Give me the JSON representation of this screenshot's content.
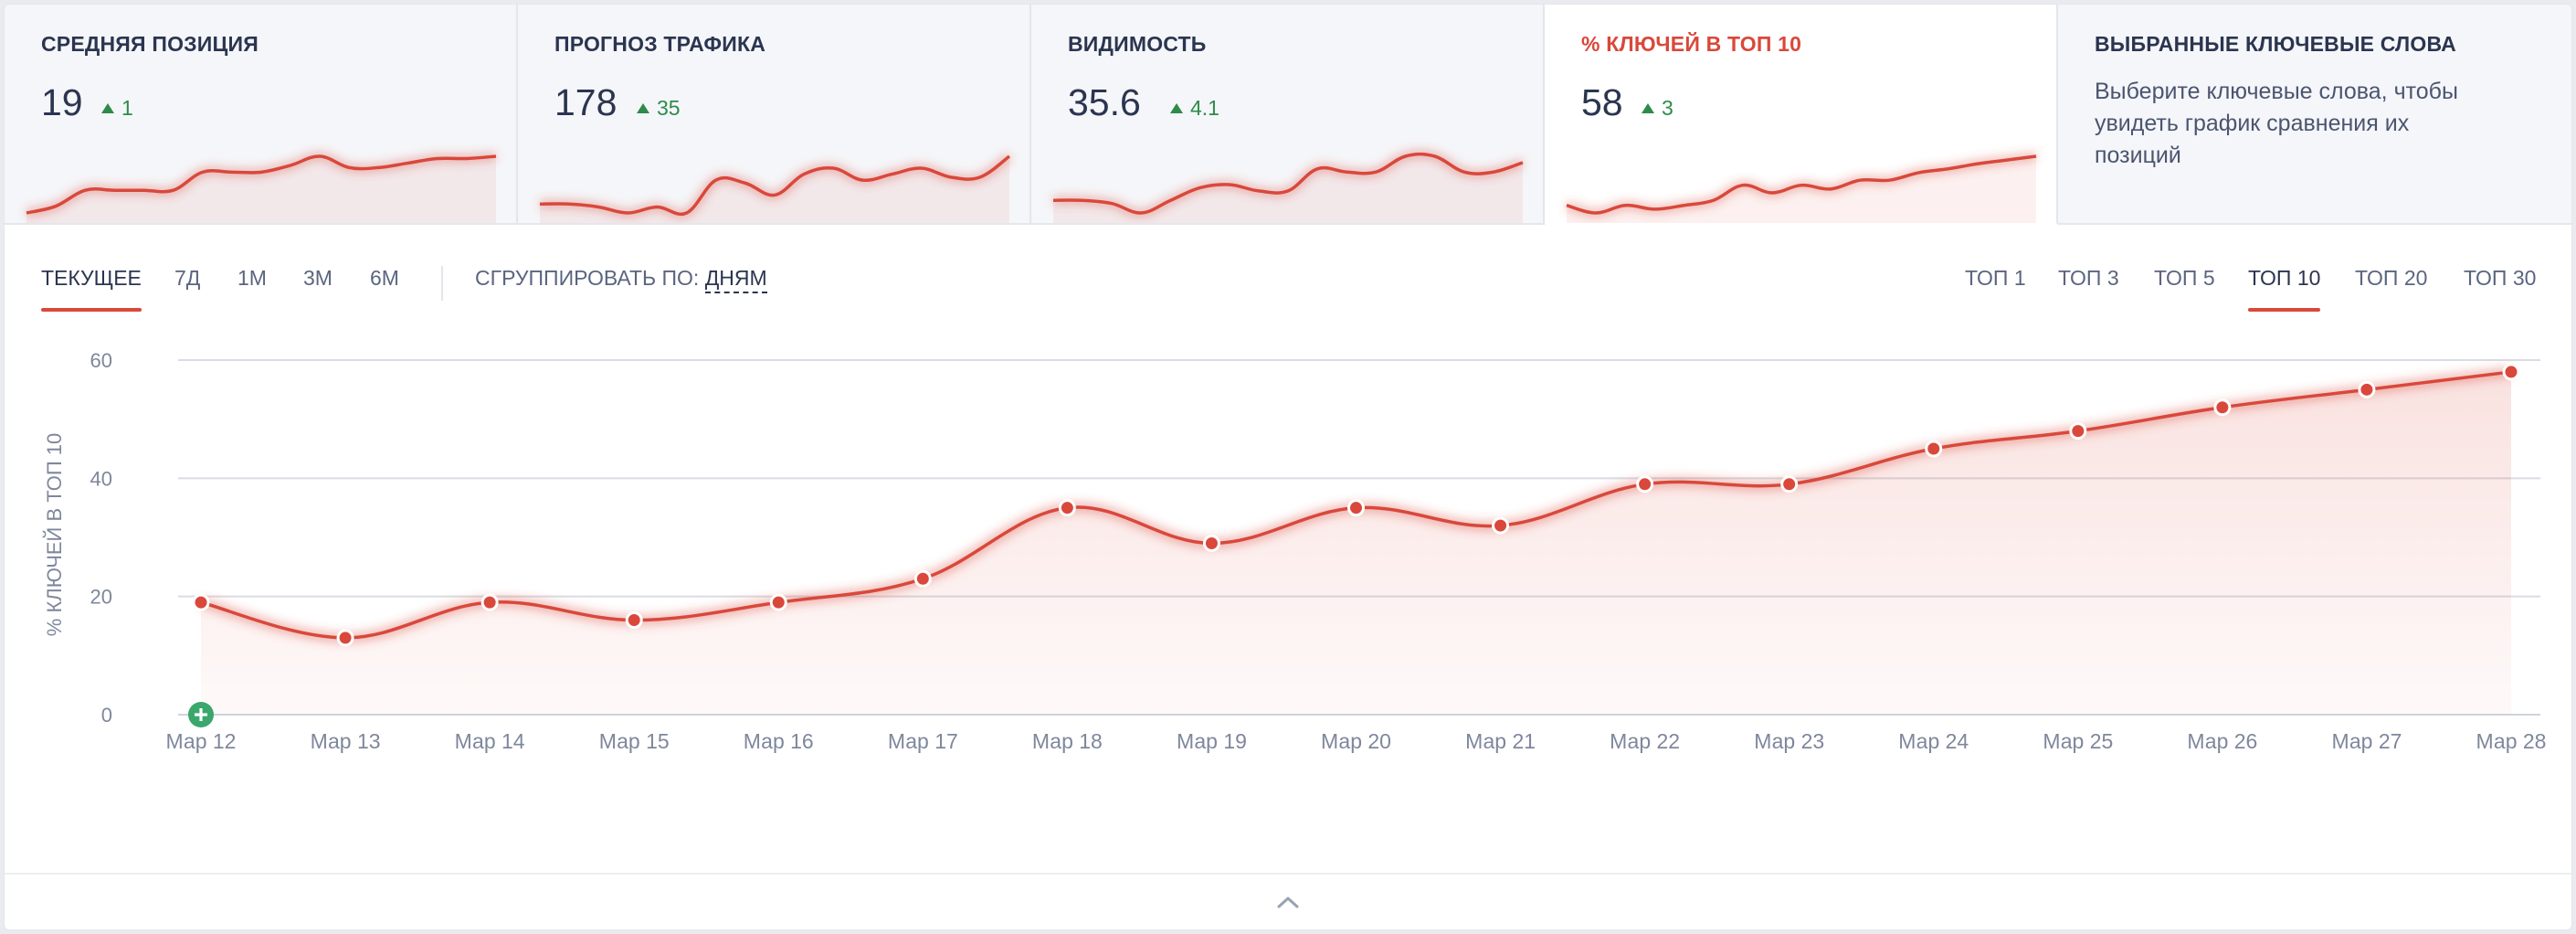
{
  "cards": [
    {
      "title": "СРЕДНЯЯ ПОЗИЦИЯ",
      "value": "19",
      "delta": "1",
      "spark": [
        8,
        11,
        18,
        18,
        18,
        18,
        26,
        26,
        26,
        29,
        33,
        28,
        28,
        30,
        32,
        32,
        33
      ]
    },
    {
      "title": "ПРОГНОЗ ТРАФИКА",
      "value": "178",
      "delta": "35",
      "spark": [
        28,
        28,
        27,
        25,
        27,
        25,
        36,
        35,
        31,
        38,
        40,
        36,
        38,
        40,
        37,
        37,
        44
      ]
    },
    {
      "title": "ВИДИМОСТЬ",
      "value": "35.6",
      "delta": "4.1",
      "spark": [
        26,
        26,
        25,
        22,
        26,
        30,
        31,
        29,
        29,
        36,
        35,
        35,
        40,
        40,
        35,
        35,
        38
      ]
    },
    {
      "title": "% КЛЮЧЕЙ В ТОП 10",
      "value": "58",
      "delta": "3",
      "spark": [
        19,
        13,
        19,
        16,
        19,
        23,
        35,
        29,
        35,
        32,
        39,
        39,
        45,
        48,
        52,
        55,
        58
      ]
    },
    {
      "title": "ВЫБРАННЫЕ КЛЮЧЕВЫЕ СЛОВА",
      "text": "Выберите ключевые слова, чтобы увидеть график сравнения их позиций"
    }
  ],
  "periods": [
    "ТЕКУЩЕЕ",
    "7Д",
    "1М",
    "3М",
    "6М"
  ],
  "active_period": "ТЕКУЩЕЕ",
  "group_by": {
    "label": "СГРУППИРОВАТЬ ПО:",
    "value": "ДНЯМ"
  },
  "tops": [
    "ТОП 1",
    "ТОП 3",
    "ТОП 5",
    "ТОП 10",
    "ТОП 20",
    "ТОП 30"
  ],
  "active_top": "ТОП 10",
  "colors": {
    "accent": "#d9483b",
    "positive": "#2e8b4a",
    "text": "#2b3550",
    "muted": "#7e879c",
    "grid": "#d9dce3"
  },
  "icons": {
    "add_annotation": "plus-circle-icon",
    "collapse": "chevron-up-icon"
  },
  "chart_data": {
    "type": "area",
    "ylabel": "% КЛЮЧЕЙ В ТОП 10",
    "ylim": [
      0,
      60
    ],
    "yticks": [
      0,
      20,
      40,
      60
    ],
    "categories": [
      "Мар 12",
      "Мар 13",
      "Мар 14",
      "Мар 15",
      "Мар 16",
      "Мар 17",
      "Мар 18",
      "Мар 19",
      "Мар 20",
      "Мар 21",
      "Мар 22",
      "Мар 23",
      "Мар 24",
      "Мар 25",
      "Мар 26",
      "Мар 27",
      "Мар 28"
    ],
    "series": [
      {
        "values": [
          19,
          13,
          19,
          16,
          19,
          23,
          35,
          29,
          35,
          32,
          39,
          39,
          45,
          48,
          52,
          55,
          58
        ]
      }
    ],
    "grid": true,
    "legend": "none"
  }
}
